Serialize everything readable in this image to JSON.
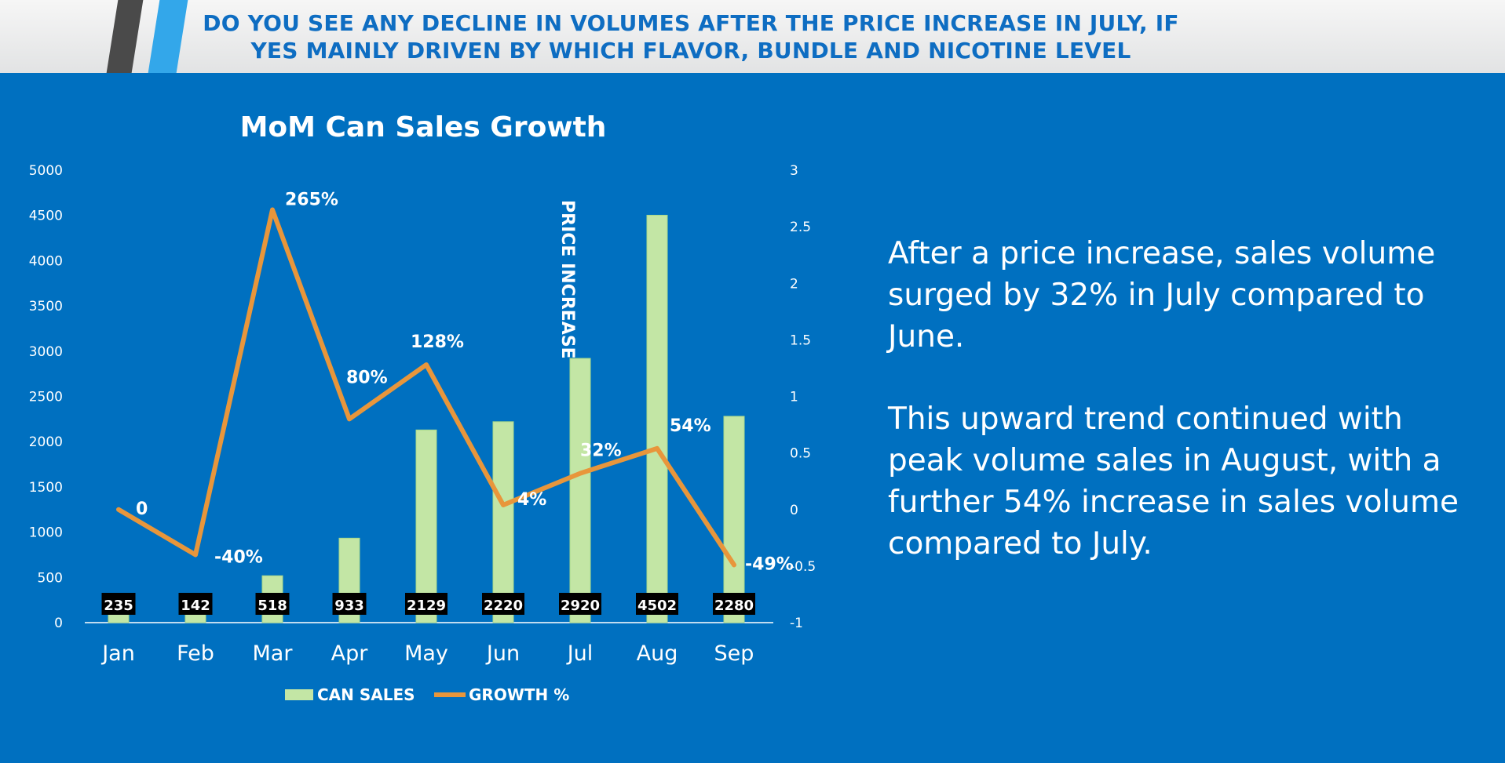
{
  "header": {
    "title": "DO YOU SEE ANY DECLINE IN VOLUMES AFTER THE PRICE INCREASE IN JULY, IF YES MAINLY DRIVEN BY WHICH FLAVOR, BUNDLE AND NICOTINE LEVEL"
  },
  "colors": {
    "background": "#0070c0",
    "bar_fill": "#c3e6a5",
    "line": "#e8963b",
    "header_title": "#0e6dc2"
  },
  "chart_data": {
    "type": "bar",
    "title": "MoM Can Sales Growth",
    "categories": [
      "Jan",
      "Feb",
      "Mar",
      "Apr",
      "May",
      "Jun",
      "Jul",
      "Aug",
      "Sep"
    ],
    "series": [
      {
        "name": "CAN SALES",
        "type": "bar",
        "axis": "left",
        "values": [
          235,
          142,
          518,
          933,
          2129,
          2220,
          2920,
          4502,
          2280
        ]
      },
      {
        "name": "GROWTH %",
        "type": "line",
        "axis": "right",
        "values": [
          0,
          -0.4,
          2.65,
          0.8,
          1.28,
          0.04,
          0.32,
          0.54,
          -0.49
        ]
      }
    ],
    "bar_labels": [
      "235",
      "142",
      "518",
      "933",
      "2129",
      "2220",
      "2920",
      "4502",
      "2280"
    ],
    "line_labels": [
      "0",
      "-40%",
      "265%",
      "80%",
      "128%",
      "4%",
      "32%",
      "54%",
      "-49%"
    ],
    "y_left": {
      "min": 0,
      "max": 5000,
      "ticks": [
        "0",
        "500",
        "1000",
        "1500",
        "2000",
        "2500",
        "3000",
        "3500",
        "4000",
        "4500",
        "5000"
      ]
    },
    "y_right": {
      "min": -1,
      "max": 3,
      "ticks": [
        "-1",
        "-0.5",
        "0",
        "0.5",
        "1",
        "1.5",
        "2",
        "2.5",
        "3"
      ]
    },
    "annotation": "PRICE INCREASE",
    "legend": [
      "CAN SALES",
      "GROWTH %"
    ],
    "legend_position": "bottom",
    "grid": false
  },
  "notes": {
    "paragraph1": "After a price increase, sales volume surged by 32% in July compared to June.",
    "paragraph2": "This upward trend continued with peak volume sales in August, with a further 54% increase in sales volume compared to July."
  }
}
